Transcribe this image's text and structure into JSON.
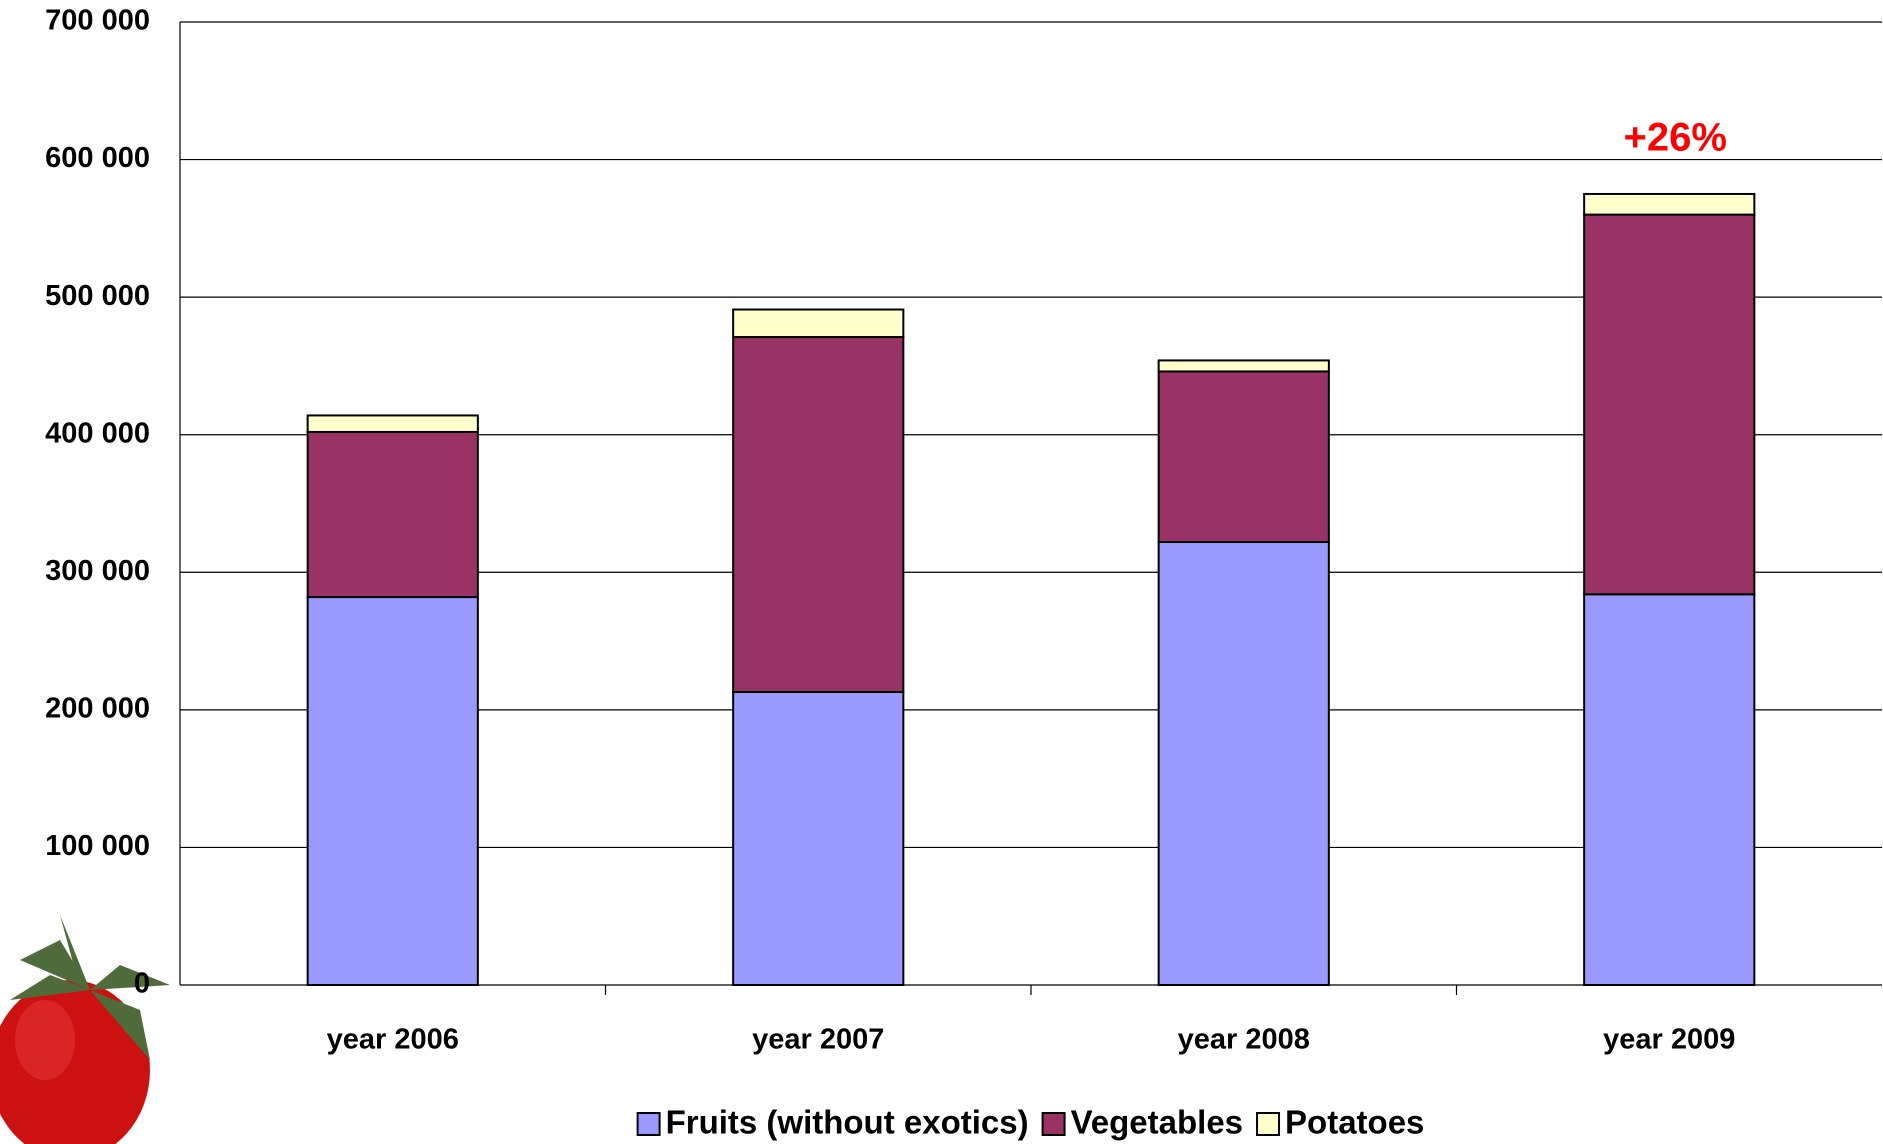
{
  "chart_data": {
    "type": "stacked-bar",
    "categories": [
      "year 2006",
      "year 2007",
      "year 2008",
      "year 2009"
    ],
    "series": [
      {
        "name": "Fruits (without exotics)",
        "color": "#9999ff",
        "values": [
          282000,
          213000,
          322000,
          284000
        ]
      },
      {
        "name": "Vegetables",
        "color": "#993366",
        "values": [
          120000,
          258000,
          124000,
          276000
        ]
      },
      {
        "name": "Potatoes",
        "color": "#ffffcc",
        "values": [
          12000,
          20000,
          8000,
          15000
        ]
      }
    ],
    "ylim": [
      0,
      700000
    ],
    "yticks": [
      0,
      {
        "value": 100000,
        "label": "100 000"
      },
      {
        "value": 200000,
        "label": "200 000"
      },
      {
        "value": 300000,
        "label": "300 000"
      },
      {
        "value": 400000,
        "label": "400 000"
      },
      {
        "value": 500000,
        "label": "500 000"
      },
      {
        "value": 600000,
        "label": "600 000"
      },
      {
        "value": 700000,
        "label": "700 000"
      }
    ],
    "grid": true,
    "annotation": "+26%",
    "annotation_color": "#ff0000",
    "legend": "bottom"
  }
}
